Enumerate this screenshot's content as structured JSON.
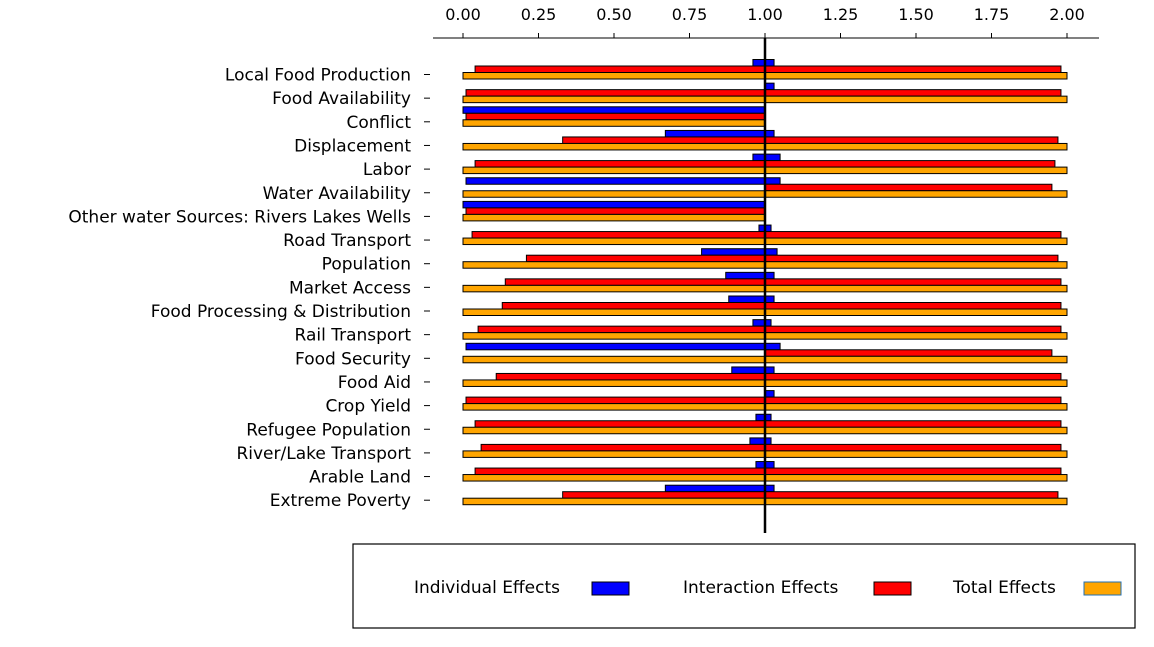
{
  "chart_data": {
    "type": "bar",
    "orientation": "horizontal",
    "xlim": [
      0,
      2
    ],
    "x_ticks": [
      "0.00",
      "0.25",
      "0.50",
      "0.75",
      "1.00",
      "1.25",
      "1.50",
      "1.75",
      "2.00"
    ],
    "x_tick_values": [
      0,
      0.25,
      0.5,
      0.75,
      1.0,
      1.25,
      1.5,
      1.75,
      2.0
    ],
    "x_axis_position": "top",
    "reference_line": 1.0,
    "grid": false,
    "legend_position": "bottom",
    "colors": {
      "individual": "#0000ff",
      "interaction": "#ff0000",
      "total": "#ffa500",
      "border": "#000000"
    },
    "categories": [
      "Local Food Production",
      "Food Availability",
      "Conflict",
      "Displacement",
      "Labor",
      "Water Availability",
      "Other water Sources: Rivers Lakes Wells",
      "Road Transport",
      "Population",
      "Market Access",
      "Food Processing & Distribution",
      "Rail Transport",
      "Food Security",
      "Food Aid",
      "Crop Yield",
      "Refugee Population",
      "River/Lake Transport",
      "Arable Land",
      "Extreme Poverty"
    ],
    "series": [
      {
        "name": "Individual Effects",
        "key": "individual",
        "ranges": [
          [
            0.96,
            1.03
          ],
          [
            1.0,
            1.03
          ],
          [
            0.0,
            1.0
          ],
          [
            0.67,
            1.03
          ],
          [
            0.96,
            1.05
          ],
          [
            0.01,
            1.05
          ],
          [
            0.0,
            1.0
          ],
          [
            0.98,
            1.02
          ],
          [
            0.79,
            1.04
          ],
          [
            0.87,
            1.03
          ],
          [
            0.88,
            1.03
          ],
          [
            0.96,
            1.02
          ],
          [
            0.01,
            1.05
          ],
          [
            0.89,
            1.03
          ],
          [
            1.0,
            1.03
          ],
          [
            0.97,
            1.02
          ],
          [
            0.95,
            1.02
          ],
          [
            0.97,
            1.03
          ],
          [
            0.67,
            1.03
          ]
        ]
      },
      {
        "name": "Interaction Effects",
        "key": "interaction",
        "ranges": [
          [
            0.04,
            1.98
          ],
          [
            0.01,
            1.98
          ],
          [
            0.01,
            1.0
          ],
          [
            0.33,
            1.97
          ],
          [
            0.04,
            1.96
          ],
          [
            1.0,
            1.95
          ],
          [
            0.01,
            1.0
          ],
          [
            0.03,
            1.98
          ],
          [
            0.21,
            1.97
          ],
          [
            0.14,
            1.98
          ],
          [
            0.13,
            1.98
          ],
          [
            0.05,
            1.98
          ],
          [
            1.0,
            1.95
          ],
          [
            0.11,
            1.98
          ],
          [
            0.01,
            1.98
          ],
          [
            0.04,
            1.98
          ],
          [
            0.06,
            1.98
          ],
          [
            0.04,
            1.98
          ],
          [
            0.33,
            1.97
          ]
        ]
      },
      {
        "name": "Total Effects",
        "key": "total",
        "ranges": [
          [
            0.0,
            2.0
          ],
          [
            0.0,
            2.0
          ],
          [
            0.0,
            1.0
          ],
          [
            0.0,
            2.0
          ],
          [
            0.0,
            2.0
          ],
          [
            0.0,
            2.0
          ],
          [
            0.0,
            1.0
          ],
          [
            0.0,
            2.0
          ],
          [
            0.0,
            2.0
          ],
          [
            0.0,
            2.0
          ],
          [
            0.0,
            2.0
          ],
          [
            0.0,
            2.0
          ],
          [
            0.0,
            2.0
          ],
          [
            0.0,
            2.0
          ],
          [
            0.0,
            2.0
          ],
          [
            0.0,
            2.0
          ],
          [
            0.0,
            2.0
          ],
          [
            0.0,
            2.0
          ],
          [
            0.0,
            2.0
          ]
        ]
      }
    ]
  }
}
